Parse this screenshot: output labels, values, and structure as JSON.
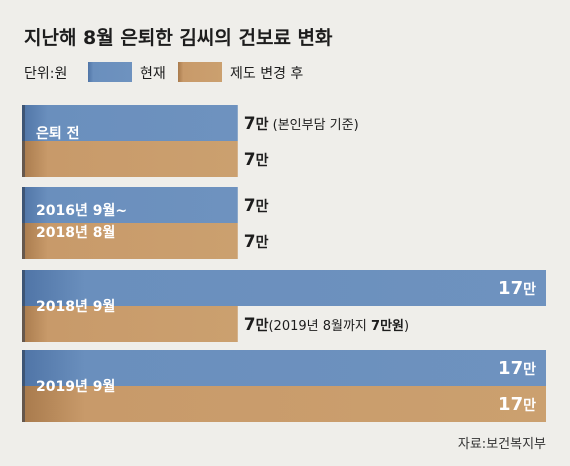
{
  "chart_data": {
    "type": "bar",
    "orientation": "horizontal",
    "title": "지난해 8월 은퇴한 김씨의 건보료 변화",
    "unit_label": "단위:원",
    "legend": [
      "현재",
      "제도 변경 후"
    ],
    "colors": {
      "current": "#6a8fbd",
      "after": "#c89a6a",
      "current_dark": "#3e5f8c",
      "after_dark": "#8a6240"
    },
    "max_value": 170000,
    "groups": [
      {
        "label_lines": [
          "은퇴 전"
        ],
        "current": 70000,
        "after": 70000,
        "current_text": {
          "num": "7",
          "unit": "만",
          "note": " (본인부담 기준)"
        },
        "after_text": {
          "num": "7",
          "unit": "만",
          "note": ""
        }
      },
      {
        "label_lines": [
          "2016년 9월~",
          "2018년 8월"
        ],
        "current": 70000,
        "after": 70000,
        "current_text": {
          "num": "7",
          "unit": "만",
          "note": ""
        },
        "after_text": {
          "num": "7",
          "unit": "만",
          "note": ""
        }
      },
      {
        "label_lines": [
          "2018년 9월"
        ],
        "current": 170000,
        "after": 70000,
        "current_text": {
          "num": "17",
          "unit": "만",
          "note": ""
        },
        "after_text": {
          "num": "7",
          "unit": "만",
          "note": "(2019년 8월까지 ",
          "note_bold": "7만원",
          "note_end": ")"
        }
      },
      {
        "label_lines": [
          "2019년 9월"
        ],
        "current": 170000,
        "after": 170000,
        "current_text": {
          "num": "17",
          "unit": "만",
          "note": ""
        },
        "after_text": {
          "num": "17",
          "unit": "만",
          "note": ""
        }
      }
    ]
  },
  "source": "자료:보건복지부"
}
